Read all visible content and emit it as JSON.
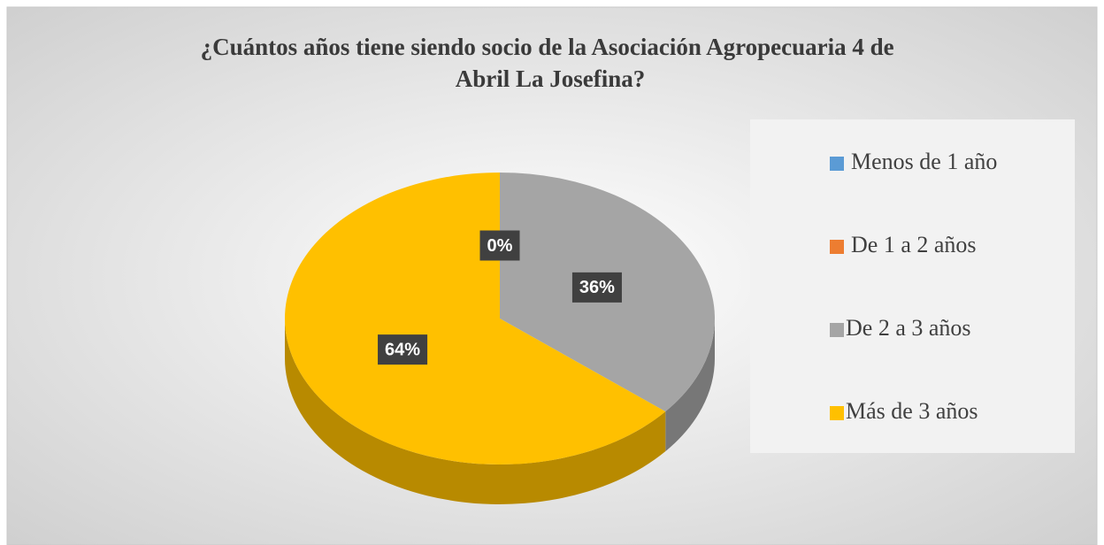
{
  "chart_data": {
    "type": "pie",
    "title": "¿Cuántos años tiene siendo socio de la Asociación Agropecuaria 4 de Abril La Josefina?",
    "categories": [
      "Menos de 1 año",
      "De 1 a 2 años",
      "De 2 a 3 años",
      "Más de 3 años"
    ],
    "values": [
      0,
      0,
      36,
      64
    ],
    "colors": [
      "#5b9bd5",
      "#ed7d31",
      "#a5a5a5",
      "#ffc000"
    ],
    "legend": "right"
  }
}
